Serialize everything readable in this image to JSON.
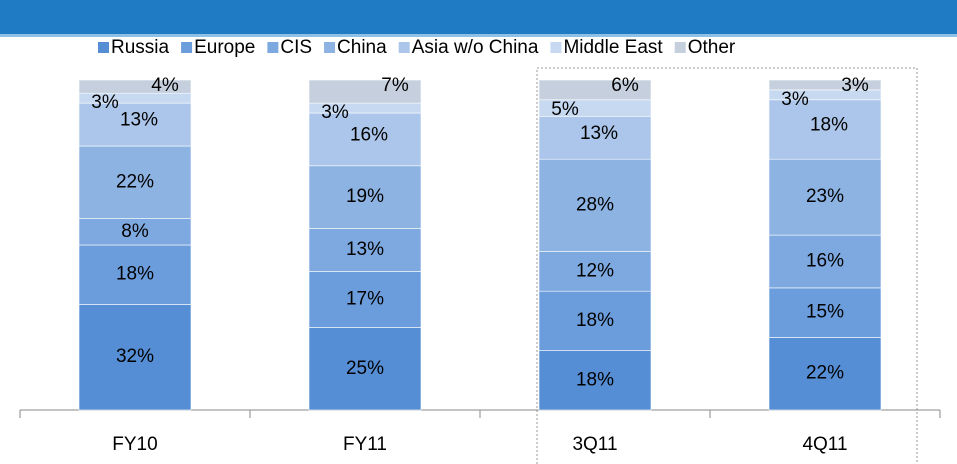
{
  "chart_data": {
    "type": "stacked_bar",
    "categories": [
      "FY10",
      "FY11",
      "3Q11",
      "4Q11"
    ],
    "ylim": [
      0,
      100
    ],
    "series": [
      {
        "name": "Russia",
        "color": "#558ed5",
        "values": [
          32,
          25,
          18,
          22
        ],
        "value_labels": [
          "32%",
          "25%",
          "18%",
          "22%"
        ]
      },
      {
        "name": "Europe",
        "color": "#6b9ddc",
        "values": [
          18,
          17,
          18,
          15
        ],
        "value_labels": [
          "18%",
          "17%",
          "18%",
          "15%"
        ]
      },
      {
        "name": "CIS",
        "color": "#7ea9e0",
        "values": [
          8,
          13,
          12,
          16
        ],
        "value_labels": [
          "8%",
          "13%",
          "12%",
          "16%"
        ]
      },
      {
        "name": "China",
        "color": "#8db3e2",
        "values": [
          22,
          19,
          28,
          23
        ],
        "value_labels": [
          "22%",
          "19%",
          "28%",
          "23%"
        ]
      },
      {
        "name": "Asia w/o China",
        "color": "#abc6ea",
        "values": [
          13,
          16,
          13,
          18
        ],
        "value_labels": [
          "13%",
          "16%",
          "13%",
          "18%"
        ]
      },
      {
        "name": "Middle East",
        "color": "#c6d9f1",
        "values": [
          3,
          3,
          5,
          3
        ],
        "value_labels": [
          "3%",
          "3%",
          "5%",
          "3%"
        ]
      },
      {
        "name": "Other",
        "color": "#c5cfdd",
        "values": [
          4,
          7,
          6,
          3
        ],
        "value_labels": [
          "4%",
          "7%",
          "6%",
          "3%"
        ]
      }
    ]
  }
}
